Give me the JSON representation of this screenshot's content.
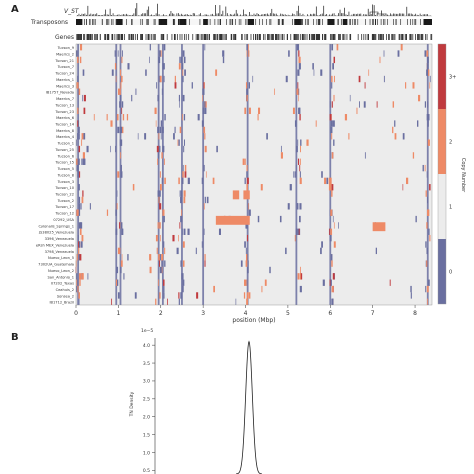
{
  "panels": {
    "a_label": "A",
    "b_label": "B"
  },
  "tracks": {
    "vst_label": "V_ST",
    "transposons_label": "Transposons",
    "genes_label": "Genes"
  },
  "colors": {
    "cn0": "#6a6fa0",
    "cn1": "#ececec",
    "cn2": "#ee8a66",
    "cn3": "#c03a3e",
    "track": "#1a1a1a"
  },
  "chart_data": [
    {
      "type": "heatmap",
      "xlabel": "position (Mbp)",
      "x_ticks": [
        "0",
        "1",
        "2",
        "3",
        "4",
        "5",
        "6",
        "7",
        "8"
      ],
      "xlim": [
        0,
        8.4
      ],
      "rows": [
        "Tucson_9",
        "Maerics_2",
        "Tucson_21",
        "Tucson_7",
        "Tucson_24",
        "Maerics_1",
        "Maerics_3",
        "IB1757_Nevada",
        "Maerics_7",
        "Tucson_13",
        "Tucson_23",
        "Maerics_6",
        "Tucson_14",
        "Maerics_8",
        "Maerics_4",
        "Tucson_1",
        "Tucson_25",
        "Tucson_6",
        "Tucson_15",
        "Tucson_5",
        "Tucson_8",
        "Tucson_3",
        "Tucson_10",
        "Tucson_22",
        "Tucson_2",
        "Tucson_17",
        "Tucson_12",
        "07292_USA",
        "Cylonalis_Springs_1",
        "JS38025_Venezuela",
        "3396_Venezuela",
        "eRsh MEX_Venezuela",
        "3798_Venezuela",
        "Nuevo_Leon_5",
        "7302UA_Guatemala",
        "Nuevo_Leon_2",
        "San_Antonio_1",
        "07202_Texas",
        "Ceahuis_2",
        "Sonsea_2",
        "IB1712_Brazil"
      ],
      "colorbar": {
        "title": "Copy Number",
        "levels": [
          "0",
          "1",
          "2",
          "3+"
        ]
      },
      "notable_blocks": [
        {
          "row": "07292_USA",
          "x": [
            3.3,
            4.1
          ],
          "copy_number": "2"
        },
        {
          "row": "Cylonalis_Springs_1",
          "x": [
            7.0,
            7.3
          ],
          "copy_number": "2"
        },
        {
          "row": "Tucson_22",
          "x": [
            3.7,
            3.85
          ],
          "copy_number": "2"
        },
        {
          "row": "Tucson_22",
          "x": [
            3.95,
            4.1
          ],
          "copy_number": "2"
        }
      ],
      "common_columns_cn0": [
        0.05,
        0.95,
        1.05,
        1.95,
        2.05,
        2.5,
        3.0,
        4.05,
        5.2,
        6.0,
        8.3
      ]
    },
    {
      "type": "line",
      "ylabel": "TN Density",
      "y_scale_label": "1e−5",
      "y_ticks": [
        "0.5",
        "1.0",
        "1.5",
        "2.0",
        "2.5",
        "3.0",
        "3.5",
        "4.0"
      ],
      "ylim": [
        0.4,
        4.2
      ],
      "peak": {
        "y": 4.1
      }
    }
  ]
}
